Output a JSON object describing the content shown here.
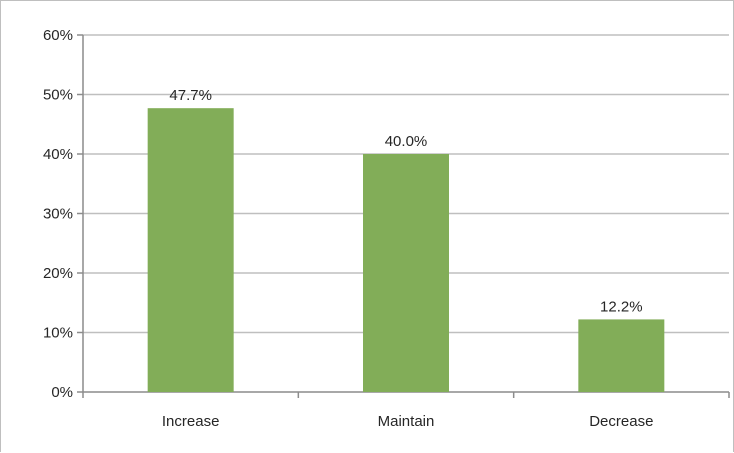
{
  "chart_data": {
    "type": "bar",
    "title": "",
    "xlabel": "",
    "ylabel": "",
    "categories": [
      "Increase",
      "Maintain",
      "Decrease"
    ],
    "values": [
      47.7,
      40.0,
      12.2
    ],
    "data_labels": [
      "47.7%",
      "40.0%",
      "12.2%"
    ],
    "ylim": [
      0,
      60
    ],
    "y_ticks": [
      0,
      10,
      20,
      30,
      40,
      50,
      60
    ],
    "y_tick_labels": [
      "0%",
      "10%",
      "20%",
      "30%",
      "40%",
      "50%",
      "60%"
    ],
    "grid": true,
    "legend": "none",
    "bar_color": "#82ad58"
  }
}
